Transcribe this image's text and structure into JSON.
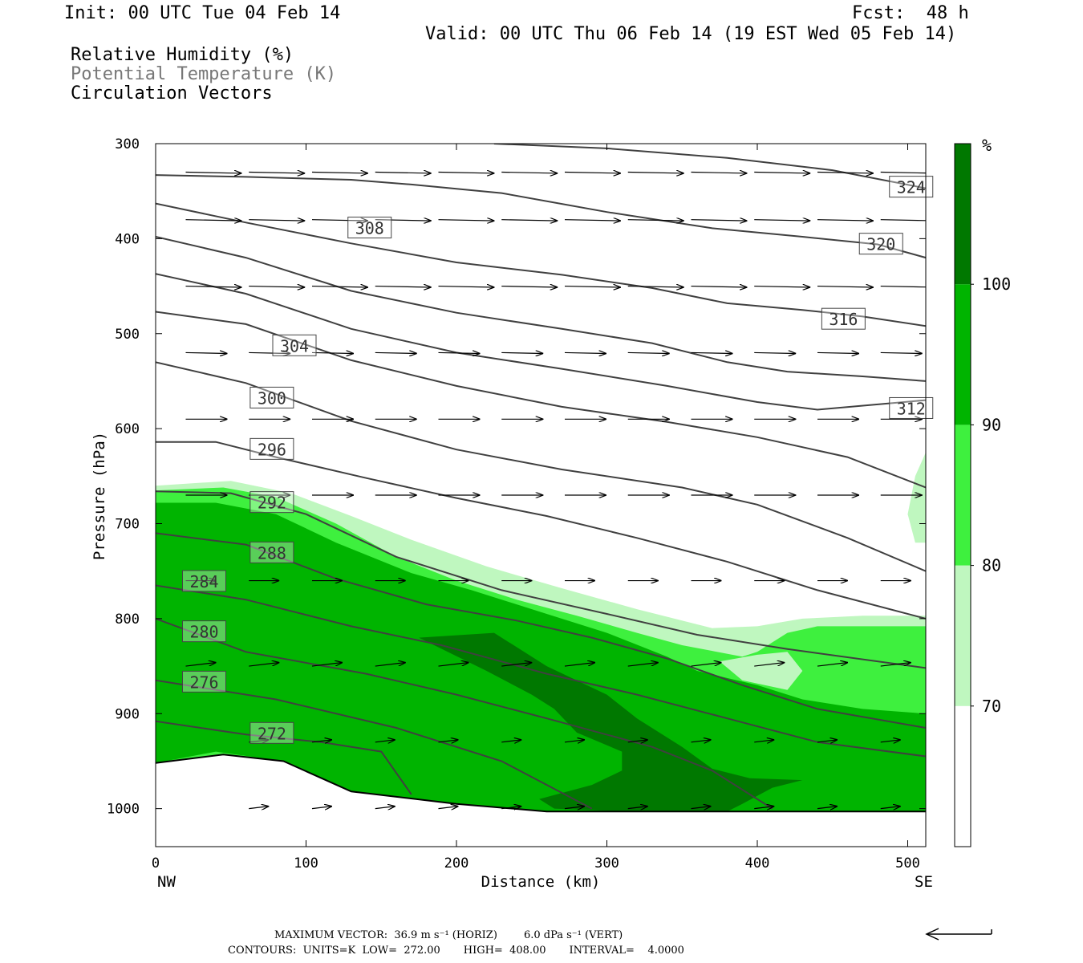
{
  "header": {
    "init": "Init: 00 UTC Tue 04 Feb 14",
    "fcst": "Fcst:  48 h",
    "valid": "Valid: 00 UTC Thu 06 Feb 14 (19 EST Wed 05 Feb 14)",
    "field1": "Relative Humidity (%)",
    "field2": "Potential Temperature (K)",
    "field3": "Circulation Vectors"
  },
  "colors": {
    "rh70": "#bff7bf",
    "rh80": "#3ef03e",
    "rh90": "#00b400",
    "rh100": "#007800",
    "isentrope": "#404040",
    "vector": "#000000"
  },
  "chart_data": {
    "type": "cross-section",
    "title": "",
    "xlabel": "Distance (km)",
    "ylabel": "Pressure (hPa)",
    "xlim": [
      0,
      512
    ],
    "ylim": [
      1040,
      300
    ],
    "x_ticks": [
      0,
      100,
      200,
      300,
      400,
      500
    ],
    "y_ticks": [
      300,
      400,
      500,
      600,
      700,
      800,
      900,
      1000
    ],
    "x_end_labels": {
      "left": "NW",
      "right": "SE"
    },
    "colorbar": {
      "unit": "%",
      "levels": [
        70,
        80,
        90,
        100
      ],
      "colors": [
        "#ffffff",
        "#bff7bf",
        "#3ef03e",
        "#00b400",
        "#007800"
      ]
    },
    "isentropes": [
      {
        "theta": 272,
        "label_at": [
          65,
          922
        ],
        "pts": [
          [
            0,
            908
          ],
          [
            60,
            922
          ],
          [
            110,
            930
          ],
          [
            150,
            940
          ],
          [
            170,
            985
          ]
        ]
      },
      {
        "theta": 276,
        "label_at": [
          20,
          868
        ],
        "pts": [
          [
            0,
            865
          ],
          [
            80,
            885
          ],
          [
            160,
            915
          ],
          [
            230,
            950
          ],
          [
            290,
            1000
          ]
        ]
      },
      {
        "theta": 280,
        "label_at": [
          20,
          815
        ],
        "pts": [
          [
            0,
            800
          ],
          [
            60,
            835
          ],
          [
            140,
            858
          ],
          [
            200,
            880
          ],
          [
            260,
            905
          ],
          [
            330,
            935
          ],
          [
            370,
            960
          ],
          [
            395,
            985
          ],
          [
            410,
            1000
          ]
        ]
      },
      {
        "theta": 284,
        "label_at": [
          20,
          762
        ],
        "pts": [
          [
            0,
            765
          ],
          [
            60,
            780
          ],
          [
            130,
            808
          ],
          [
            190,
            828
          ],
          [
            260,
            858
          ],
          [
            320,
            880
          ],
          [
            380,
            905
          ],
          [
            440,
            930
          ],
          [
            512,
            945
          ]
        ]
      },
      {
        "theta": 288,
        "label_at": [
          65,
          732
        ],
        "pts": [
          [
            0,
            710
          ],
          [
            60,
            722
          ],
          [
            120,
            758
          ],
          [
            180,
            785
          ],
          [
            240,
            802
          ],
          [
            290,
            820
          ],
          [
            340,
            842
          ],
          [
            390,
            870
          ],
          [
            440,
            895
          ],
          [
            512,
            915
          ]
        ]
      },
      {
        "theta": 292,
        "label_at": [
          65,
          679
        ],
        "pts": [
          [
            0,
            666
          ],
          [
            50,
            668
          ],
          [
            100,
            690
          ],
          [
            160,
            735
          ],
          [
            230,
            770
          ],
          [
            300,
            795
          ],
          [
            360,
            817
          ],
          [
            420,
            832
          ],
          [
            512,
            852
          ]
        ]
      },
      {
        "theta": 296,
        "label_at": [
          65,
          623
        ],
        "pts": [
          [
            0,
            614
          ],
          [
            40,
            614
          ],
          [
            80,
            630
          ],
          [
            140,
            652
          ],
          [
            200,
            673
          ],
          [
            260,
            692
          ],
          [
            320,
            715
          ],
          [
            380,
            740
          ],
          [
            440,
            770
          ],
          [
            512,
            800
          ]
        ]
      },
      {
        "theta": 300,
        "label_at": [
          65,
          569
        ],
        "pts": [
          [
            0,
            530
          ],
          [
            60,
            552
          ],
          [
            130,
            592
          ],
          [
            200,
            622
          ],
          [
            270,
            643
          ],
          [
            350,
            662
          ],
          [
            400,
            680
          ],
          [
            460,
            715
          ],
          [
            512,
            750
          ]
        ]
      },
      {
        "theta": 304,
        "label_at": [
          80,
          514
        ],
        "pts": [
          [
            0,
            477
          ],
          [
            60,
            490
          ],
          [
            130,
            528
          ],
          [
            200,
            555
          ],
          [
            270,
            577
          ],
          [
            340,
            593
          ],
          [
            400,
            609
          ],
          [
            460,
            630
          ],
          [
            512,
            662
          ]
        ]
      },
      {
        "theta": 308,
        "label_at": [
          130,
          390
        ],
        "pts": [
          [
            0,
            437
          ],
          [
            60,
            458
          ],
          [
            130,
            495
          ],
          [
            200,
            520
          ],
          [
            270,
            537
          ],
          [
            340,
            555
          ],
          [
            400,
            572
          ],
          [
            440,
            580
          ],
          [
            490,
            573
          ],
          [
            512,
            570
          ]
        ]
      },
      {
        "theta": 312,
        "label_at": [
          490,
          580
        ],
        "pts": [
          [
            0,
            398
          ],
          [
            60,
            420
          ],
          [
            130,
            455
          ],
          [
            200,
            478
          ],
          [
            270,
            495
          ],
          [
            330,
            510
          ],
          [
            380,
            530
          ],
          [
            420,
            540
          ],
          [
            470,
            545
          ],
          [
            512,
            550
          ]
        ]
      },
      {
        "theta": 316,
        "label_at": [
          445,
          486
        ],
        "pts": [
          [
            0,
            363
          ],
          [
            60,
            383
          ],
          [
            130,
            405
          ],
          [
            200,
            425
          ],
          [
            270,
            438
          ],
          [
            330,
            452
          ],
          [
            380,
            468
          ],
          [
            430,
            475
          ],
          [
            470,
            482
          ],
          [
            512,
            492
          ]
        ]
      },
      {
        "theta": 320,
        "label_at": [
          470,
          407
        ],
        "pts": [
          [
            0,
            333
          ],
          [
            60,
            335
          ],
          [
            130,
            338
          ],
          [
            170,
            343
          ],
          [
            230,
            352
          ],
          [
            300,
            372
          ],
          [
            370,
            389
          ],
          [
            430,
            398
          ],
          [
            480,
            406
          ],
          [
            512,
            420
          ]
        ]
      },
      {
        "theta": 324,
        "label_at": [
          490,
          347
        ],
        "pts": [
          [
            225,
            300
          ],
          [
            300,
            305
          ],
          [
            380,
            315
          ],
          [
            450,
            328
          ],
          [
            512,
            347
          ]
        ]
      }
    ],
    "vectors_note": "Circulation vectors (horizontal + vertical) drawn on a regular grid",
    "footer": {
      "max_vector": "MAXIMUM VECTOR:  36.9 m s⁻¹ (HORIZ)        6.0 dPa s⁻¹ (VERT)",
      "contours": "CONTOURS:  UNITS=K  LOW=  272.00       HIGH=  408.00       INTERVAL=    4.0000"
    }
  }
}
